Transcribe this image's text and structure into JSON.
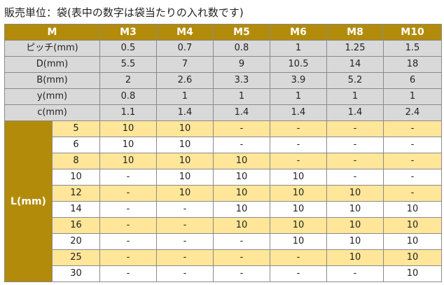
{
  "caption": "販売単位：袋(表中の数字は袋当たりの入れ数です)",
  "header": {
    "corner": "M",
    "sizes": [
      "M3",
      "M4",
      "M5",
      "M6",
      "M8",
      "M10"
    ]
  },
  "props": [
    {
      "label": "ピッチ(mm)",
      "values": [
        "0.5",
        "0.7",
        "0.8",
        "1",
        "1.25",
        "1.5"
      ]
    },
    {
      "label": "D(mm)",
      "values": [
        "5.5",
        "7",
        "9",
        "10.5",
        "14",
        "18"
      ]
    },
    {
      "label": "B(mm)",
      "values": [
        "2",
        "2.6",
        "3.3",
        "3.9",
        "5.2",
        "6"
      ]
    },
    {
      "label": "y(mm)",
      "values": [
        "0.8",
        "1",
        "1",
        "1",
        "1",
        "1"
      ]
    },
    {
      "label": "c(mm)",
      "values": [
        "1.1",
        "1.4",
        "1.4",
        "1.4",
        "1.4",
        "2.4"
      ]
    }
  ],
  "length_label": "L(mm)",
  "lengths": [
    {
      "L": "5",
      "values": [
        "10",
        "10",
        "-",
        "-",
        "-",
        "-"
      ]
    },
    {
      "L": "6",
      "values": [
        "10",
        "10",
        "-",
        "-",
        "-",
        "-"
      ]
    },
    {
      "L": "8",
      "values": [
        "10",
        "10",
        "10",
        "-",
        "-",
        "-"
      ]
    },
    {
      "L": "10",
      "values": [
        "-",
        "10",
        "10",
        "10",
        "-",
        "-"
      ]
    },
    {
      "L": "12",
      "values": [
        "-",
        "10",
        "10",
        "10",
        "10",
        "-"
      ]
    },
    {
      "L": "14",
      "values": [
        "-",
        "-",
        "10",
        "10",
        "10",
        "10"
      ]
    },
    {
      "L": "16",
      "values": [
        "-",
        "-",
        "10",
        "10",
        "10",
        "10"
      ]
    },
    {
      "L": "20",
      "values": [
        "-",
        "-",
        "-",
        "10",
        "10",
        "10"
      ]
    },
    {
      "L": "25",
      "values": [
        "-",
        "-",
        "-",
        "-",
        "10",
        "10"
      ]
    },
    {
      "L": "30",
      "values": [
        "-",
        "-",
        "-",
        "-",
        "-",
        "10"
      ]
    }
  ],
  "colors": {
    "header_bg": "#b28b0a",
    "header_text": "#ffffff",
    "prop_bg": "#d9d9d9",
    "highlight_row_bg": "#ffe699"
  }
}
